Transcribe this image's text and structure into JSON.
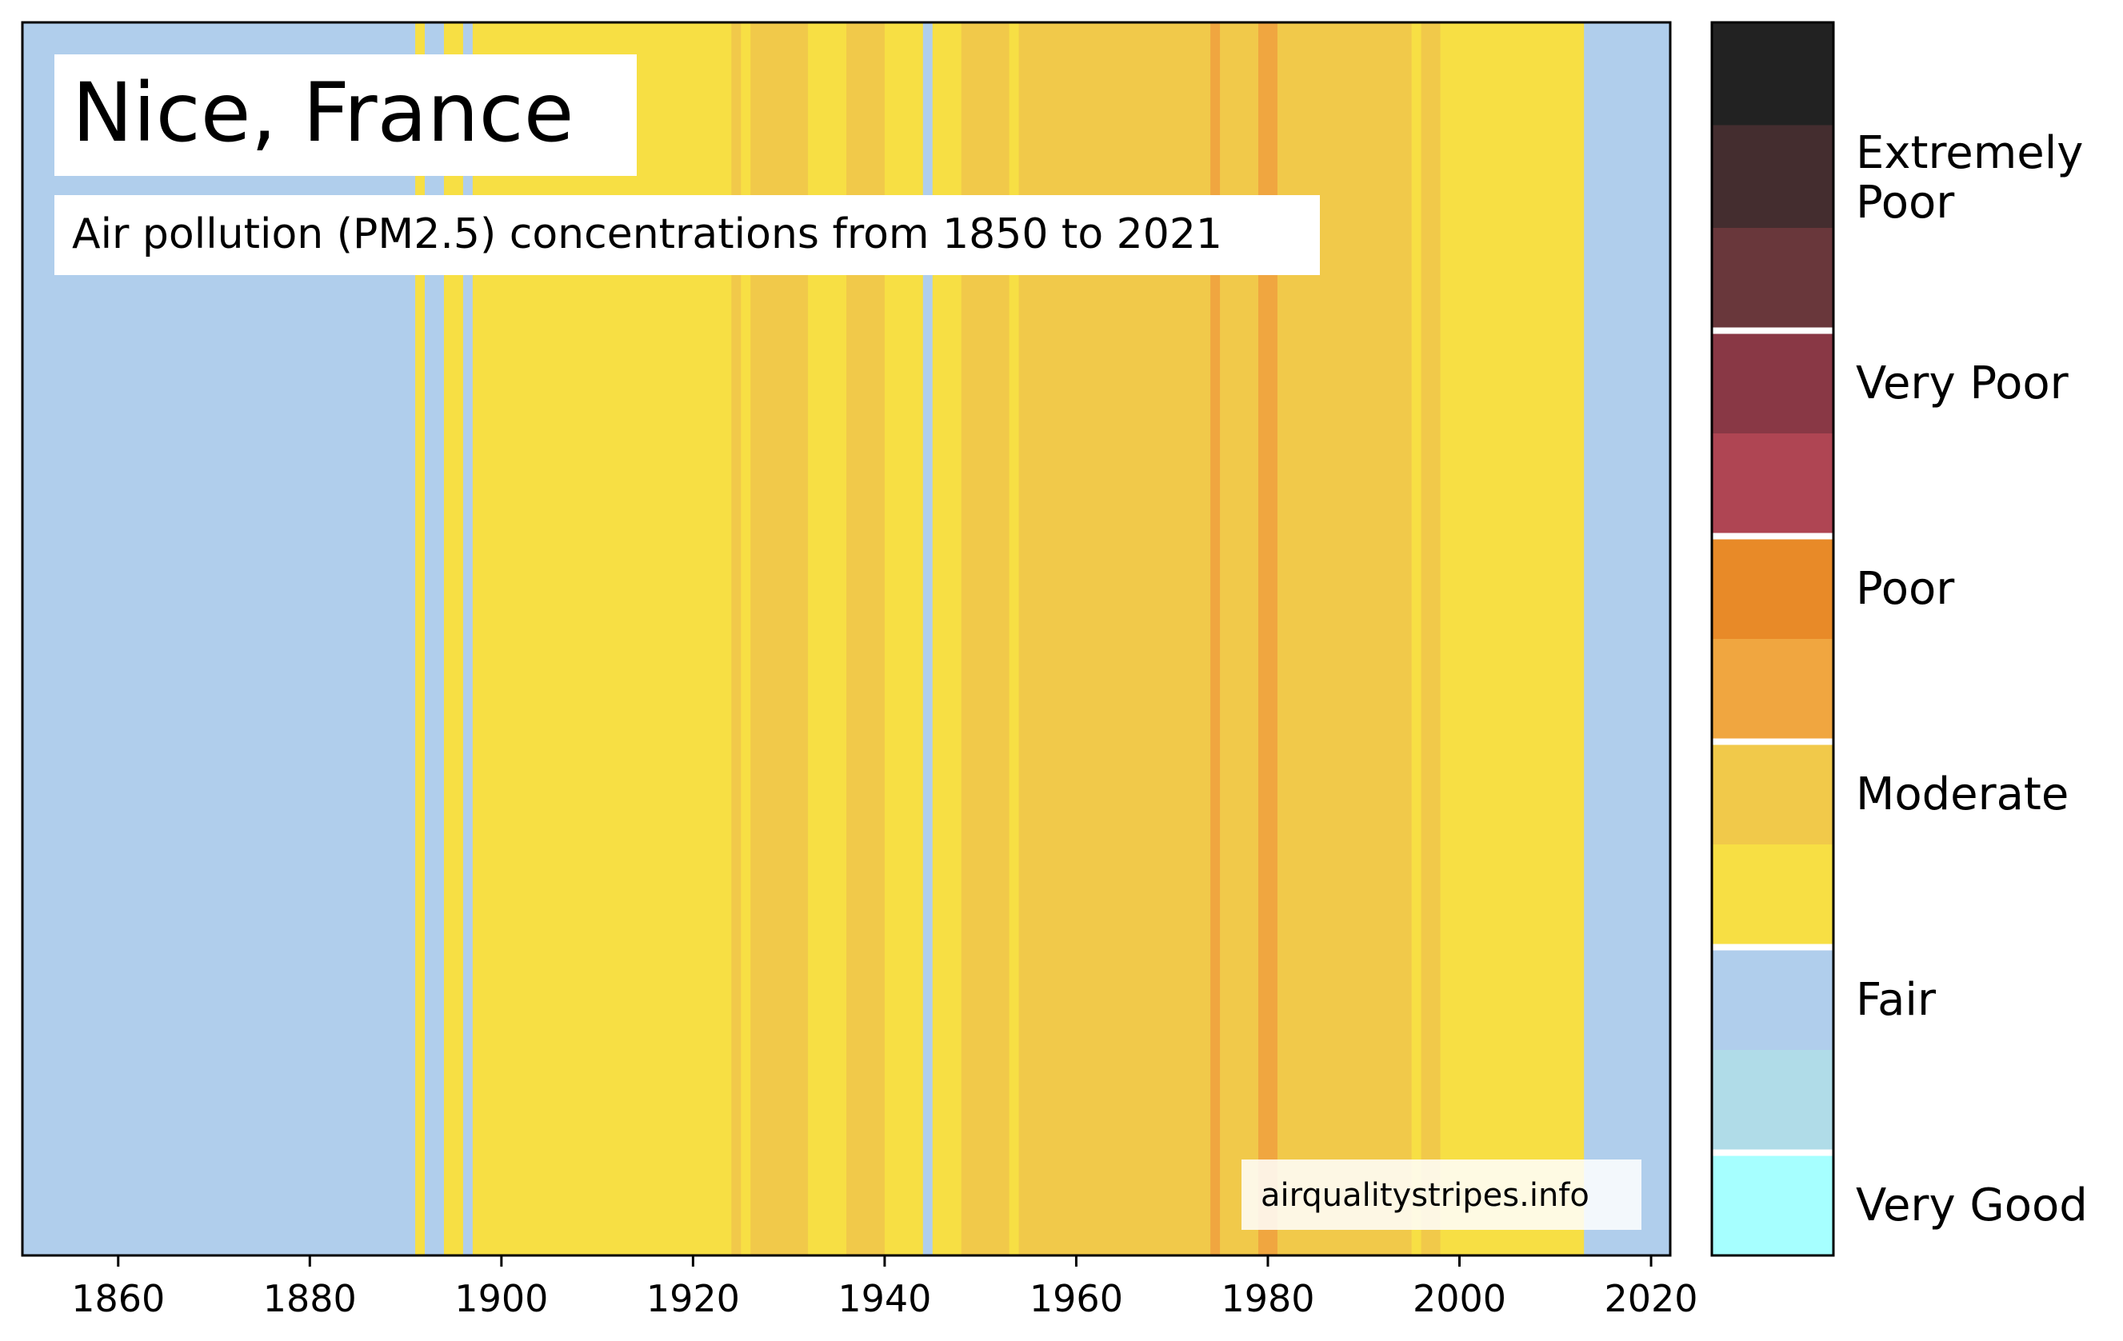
{
  "chart_data": {
    "type": "heatmap",
    "title": "Nice, France",
    "subtitle": "Air pollution (PM2.5) concentrations from 1850 to 2021",
    "credit": "airqualitystripes.info",
    "x_ticks": [
      1860,
      1880,
      1900,
      1920,
      1940,
      1960,
      1980,
      2000,
      2020
    ],
    "xlim": [
      1850,
      2022
    ],
    "colors": {
      "Very Good": "#a6ffff",
      "Fair light": "#b0dce8",
      "Fair": "#b0ceec",
      "Moderate light": "#f7df44",
      "Moderate": "#f1c94a",
      "Poor light": "#f0a640",
      "Poor": "#e88a28",
      "Very Poor light": "#af4553",
      "Very Poor": "#893845",
      "Extremely Poor light": "#69373b",
      "Extremely Poor": "#442d2f",
      "Extremely Poor dark": "#222222"
    },
    "stripes": [
      {
        "start": 1850,
        "end": 1891,
        "category": "Fair"
      },
      {
        "start": 1891,
        "end": 1892,
        "category": "Moderate light"
      },
      {
        "start": 1892,
        "end": 1894,
        "category": "Fair"
      },
      {
        "start": 1894,
        "end": 1896,
        "category": "Moderate light"
      },
      {
        "start": 1896,
        "end": 1897,
        "category": "Fair"
      },
      {
        "start": 1897,
        "end": 1924,
        "category": "Moderate light"
      },
      {
        "start": 1924,
        "end": 1925,
        "category": "Moderate"
      },
      {
        "start": 1925,
        "end": 1926,
        "category": "Moderate light"
      },
      {
        "start": 1926,
        "end": 1932,
        "category": "Moderate"
      },
      {
        "start": 1932,
        "end": 1936,
        "category": "Moderate light"
      },
      {
        "start": 1936,
        "end": 1940,
        "category": "Moderate"
      },
      {
        "start": 1940,
        "end": 1944,
        "category": "Moderate light"
      },
      {
        "start": 1944,
        "end": 1945,
        "category": "Fair"
      },
      {
        "start": 1945,
        "end": 1948,
        "category": "Moderate light"
      },
      {
        "start": 1948,
        "end": 1953,
        "category": "Moderate"
      },
      {
        "start": 1953,
        "end": 1954,
        "category": "Moderate light"
      },
      {
        "start": 1954,
        "end": 1974,
        "category": "Moderate"
      },
      {
        "start": 1974,
        "end": 1975,
        "category": "Poor light"
      },
      {
        "start": 1975,
        "end": 1979,
        "category": "Moderate"
      },
      {
        "start": 1979,
        "end": 1981,
        "category": "Poor light"
      },
      {
        "start": 1981,
        "end": 1995,
        "category": "Moderate"
      },
      {
        "start": 1995,
        "end": 1996,
        "category": "Moderate light"
      },
      {
        "start": 1996,
        "end": 1998,
        "category": "Moderate"
      },
      {
        "start": 1998,
        "end": 2013,
        "category": "Moderate light"
      },
      {
        "start": 2013,
        "end": 2022,
        "category": "Fair"
      }
    ],
    "colorbar_bands": [
      "Extremely Poor dark",
      "Extremely Poor",
      "Extremely Poor light",
      "Very Poor",
      "Very Poor light",
      "Poor",
      "Poor light",
      "Moderate",
      "Moderate light",
      "Fair",
      "Fair light",
      "Very Good"
    ],
    "colorbar_separators_after": [
      2,
      4,
      6,
      8,
      10
    ],
    "colorbar_labels": [
      {
        "lines": [
          "Extremely",
          "Poor"
        ],
        "band_center": 1.0
      },
      {
        "lines": [
          "Very Poor"
        ],
        "band_center": 3.0
      },
      {
        "lines": [
          "Poor"
        ],
        "band_center": 5.0
      },
      {
        "lines": [
          "Moderate"
        ],
        "band_center": 7.0
      },
      {
        "lines": [
          "Fair"
        ],
        "band_center": 9.0
      },
      {
        "lines": [
          "Very Good"
        ],
        "band_center": 11.0
      }
    ]
  }
}
